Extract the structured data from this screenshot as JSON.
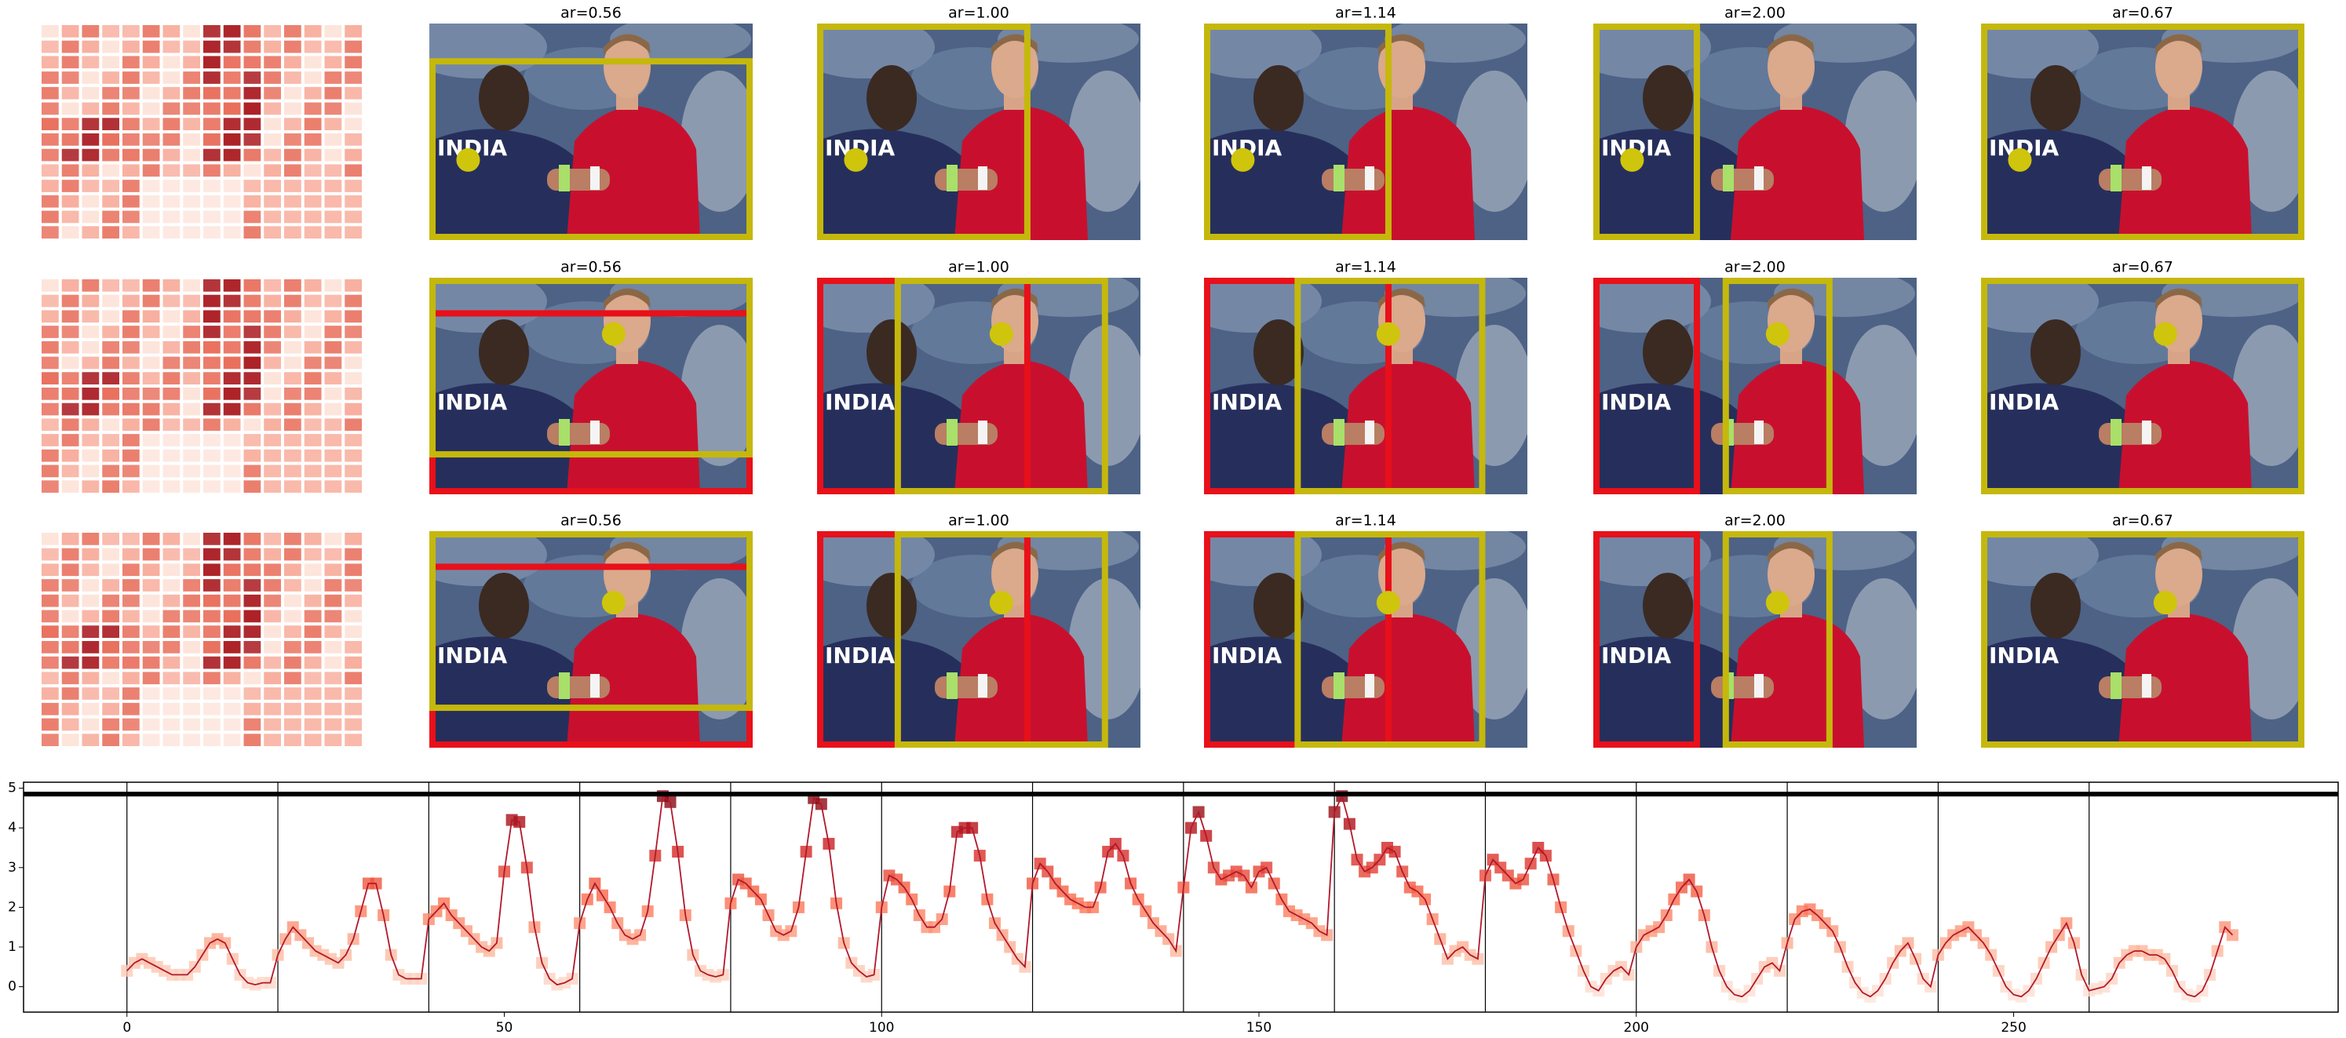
{
  "panel_rows": [
    {
      "titles": [
        "ar=0.56",
        "ar=1.00",
        "ar=1.14",
        "ar=2.00",
        "ar=0.67"
      ]
    },
    {
      "titles": [
        "ar=0.56",
        "ar=1.00",
        "ar=1.14",
        "ar=2.00",
        "ar=0.67"
      ]
    },
    {
      "titles": [
        "ar=0.56",
        "ar=1.00",
        "ar=1.14",
        "ar=2.00",
        "ar=0.67"
      ]
    }
  ],
  "photo_text": "INDIA",
  "chart_data": {
    "type": "line",
    "colormap": "Reds",
    "line_color": "#b2182b",
    "xlim": [
      -13.7,
      293
    ],
    "ylim": [
      -0.64,
      5.15
    ],
    "xticks": [
      0,
      50,
      100,
      150,
      200,
      250
    ],
    "yticks": [
      0,
      1,
      2,
      3,
      4,
      5
    ],
    "vlines": [
      0,
      20,
      40,
      60,
      80,
      100,
      120,
      140,
      160,
      180,
      200,
      220,
      240,
      260
    ],
    "hline": 4.85,
    "x": [
      0,
      1,
      2,
      3,
      4,
      5,
      6,
      7,
      8,
      9,
      10,
      11,
      12,
      13,
      14,
      15,
      16,
      17,
      18,
      19,
      20,
      21,
      22,
      23,
      24,
      25,
      26,
      27,
      28,
      29,
      30,
      31,
      32,
      33,
      34,
      35,
      36,
      37,
      38,
      39,
      40,
      41,
      42,
      43,
      44,
      45,
      46,
      47,
      48,
      49,
      50,
      51,
      52,
      53,
      54,
      55,
      56,
      57,
      58,
      59,
      60,
      61,
      62,
      63,
      64,
      65,
      66,
      67,
      68,
      69,
      70,
      71,
      72,
      73,
      74,
      75,
      76,
      77,
      78,
      79,
      80,
      81,
      82,
      83,
      84,
      85,
      86,
      87,
      88,
      89,
      90,
      91,
      92,
      93,
      94,
      95,
      96,
      97,
      98,
      99,
      100,
      101,
      102,
      103,
      104,
      105,
      106,
      107,
      108,
      109,
      110,
      111,
      112,
      113,
      114,
      115,
      116,
      117,
      118,
      119,
      120,
      121,
      122,
      123,
      124,
      125,
      126,
      127,
      128,
      129,
      130,
      131,
      132,
      133,
      134,
      135,
      136,
      137,
      138,
      139,
      140,
      141,
      142,
      143,
      144,
      145,
      146,
      147,
      148,
      149,
      150,
      151,
      152,
      153,
      154,
      155,
      156,
      157,
      158,
      159,
      160,
      161,
      162,
      163,
      164,
      165,
      166,
      167,
      168,
      169,
      170,
      171,
      172,
      173,
      174,
      175,
      176,
      177,
      178,
      179,
      180,
      181,
      182,
      183,
      184,
      185,
      186,
      187,
      188,
      189,
      190,
      191,
      192,
      193,
      194,
      195,
      196,
      197,
      198,
      199,
      200,
      201,
      202,
      203,
      204,
      205,
      206,
      207,
      208,
      209,
      210,
      211,
      212,
      213,
      214,
      215,
      216,
      217,
      218,
      219,
      220,
      221,
      222,
      223,
      224,
      225,
      226,
      227,
      228,
      229,
      230,
      231,
      232,
      233,
      234,
      235,
      236,
      237,
      238,
      239,
      240,
      241,
      242,
      243,
      244,
      245,
      246,
      247,
      248,
      249,
      250,
      251,
      252,
      253,
      254,
      255,
      256,
      257,
      258,
      259,
      260,
      261,
      262,
      263,
      264,
      265,
      266,
      267,
      268,
      269,
      270,
      271,
      272,
      273,
      274,
      275,
      276,
      277,
      278,
      279
    ],
    "values": [
      0.4,
      0.6,
      0.7,
      0.6,
      0.5,
      0.4,
      0.3,
      0.3,
      0.3,
      0.5,
      0.8,
      1.1,
      1.2,
      1.1,
      0.7,
      0.3,
      0.1,
      0.05,
      0.1,
      0.1,
      0.8,
      1.2,
      1.5,
      1.3,
      1.1,
      0.9,
      0.8,
      0.7,
      0.6,
      0.8,
      1.2,
      1.9,
      2.6,
      2.6,
      1.8,
      0.8,
      0.3,
      0.2,
      0.2,
      0.2,
      1.7,
      1.9,
      2.1,
      1.8,
      1.6,
      1.4,
      1.2,
      1.0,
      0.9,
      1.1,
      2.9,
      4.2,
      4.15,
      3.0,
      1.5,
      0.6,
      0.2,
      0.05,
      0.1,
      0.2,
      1.6,
      2.2,
      2.6,
      2.3,
      2.0,
      1.6,
      1.3,
      1.2,
      1.3,
      1.9,
      3.3,
      4.8,
      4.65,
      3.4,
      1.8,
      0.8,
      0.4,
      0.3,
      0.25,
      0.3,
      2.1,
      2.7,
      2.6,
      2.4,
      2.2,
      1.8,
      1.4,
      1.3,
      1.4,
      2.0,
      3.4,
      4.75,
      4.6,
      3.6,
      2.1,
      1.1,
      0.6,
      0.4,
      0.25,
      0.3,
      2.0,
      2.8,
      2.7,
      2.5,
      2.2,
      1.8,
      1.5,
      1.5,
      1.7,
      2.4,
      3.9,
      4.0,
      4.0,
      3.3,
      2.2,
      1.6,
      1.3,
      1.0,
      0.7,
      0.5,
      2.6,
      3.1,
      2.9,
      2.6,
      2.4,
      2.2,
      2.1,
      2.0,
      2.0,
      2.5,
      3.4,
      3.6,
      3.3,
      2.6,
      2.2,
      1.9,
      1.6,
      1.4,
      1.2,
      0.9,
      2.5,
      4.0,
      4.4,
      3.8,
      3.0,
      2.7,
      2.8,
      2.9,
      2.8,
      2.5,
      2.9,
      3.0,
      2.6,
      2.2,
      1.9,
      1.8,
      1.7,
      1.6,
      1.4,
      1.3,
      4.4,
      4.8,
      4.1,
      3.2,
      2.9,
      3.0,
      3.2,
      3.5,
      3.4,
      2.9,
      2.5,
      2.4,
      2.2,
      1.7,
      1.2,
      0.7,
      0.9,
      1.0,
      0.8,
      0.7,
      2.8,
      3.2,
      3.0,
      2.8,
      2.6,
      2.7,
      3.1,
      3.5,
      3.3,
      2.7,
      2.0,
      1.4,
      0.9,
      0.4,
      0.0,
      -0.1,
      0.2,
      0.4,
      0.5,
      0.3,
      1.0,
      1.3,
      1.4,
      1.5,
      1.8,
      2.2,
      2.5,
      2.7,
      2.4,
      1.8,
      1.0,
      0.4,
      0.0,
      -0.2,
      -0.25,
      -0.1,
      0.2,
      0.5,
      0.6,
      0.4,
      1.1,
      1.7,
      1.9,
      1.95,
      1.8,
      1.6,
      1.4,
      1.0,
      0.5,
      0.1,
      -0.15,
      -0.25,
      -0.1,
      0.2,
      0.6,
      0.9,
      1.1,
      0.7,
      0.2,
      0.0,
      0.8,
      1.1,
      1.3,
      1.4,
      1.5,
      1.3,
      1.1,
      0.8,
      0.4,
      0.0,
      -0.2,
      -0.25,
      -0.1,
      0.2,
      0.6,
      1.0,
      1.3,
      1.6,
      1.1,
      0.3,
      -0.1,
      -0.05,
      0.0,
      0.2,
      0.6,
      0.8,
      0.9,
      0.9,
      0.8,
      0.8,
      0.7,
      0.4,
      0.0,
      -0.2,
      -0.25,
      -0.1,
      0.3,
      0.9,
      1.5,
      1.3
    ]
  }
}
